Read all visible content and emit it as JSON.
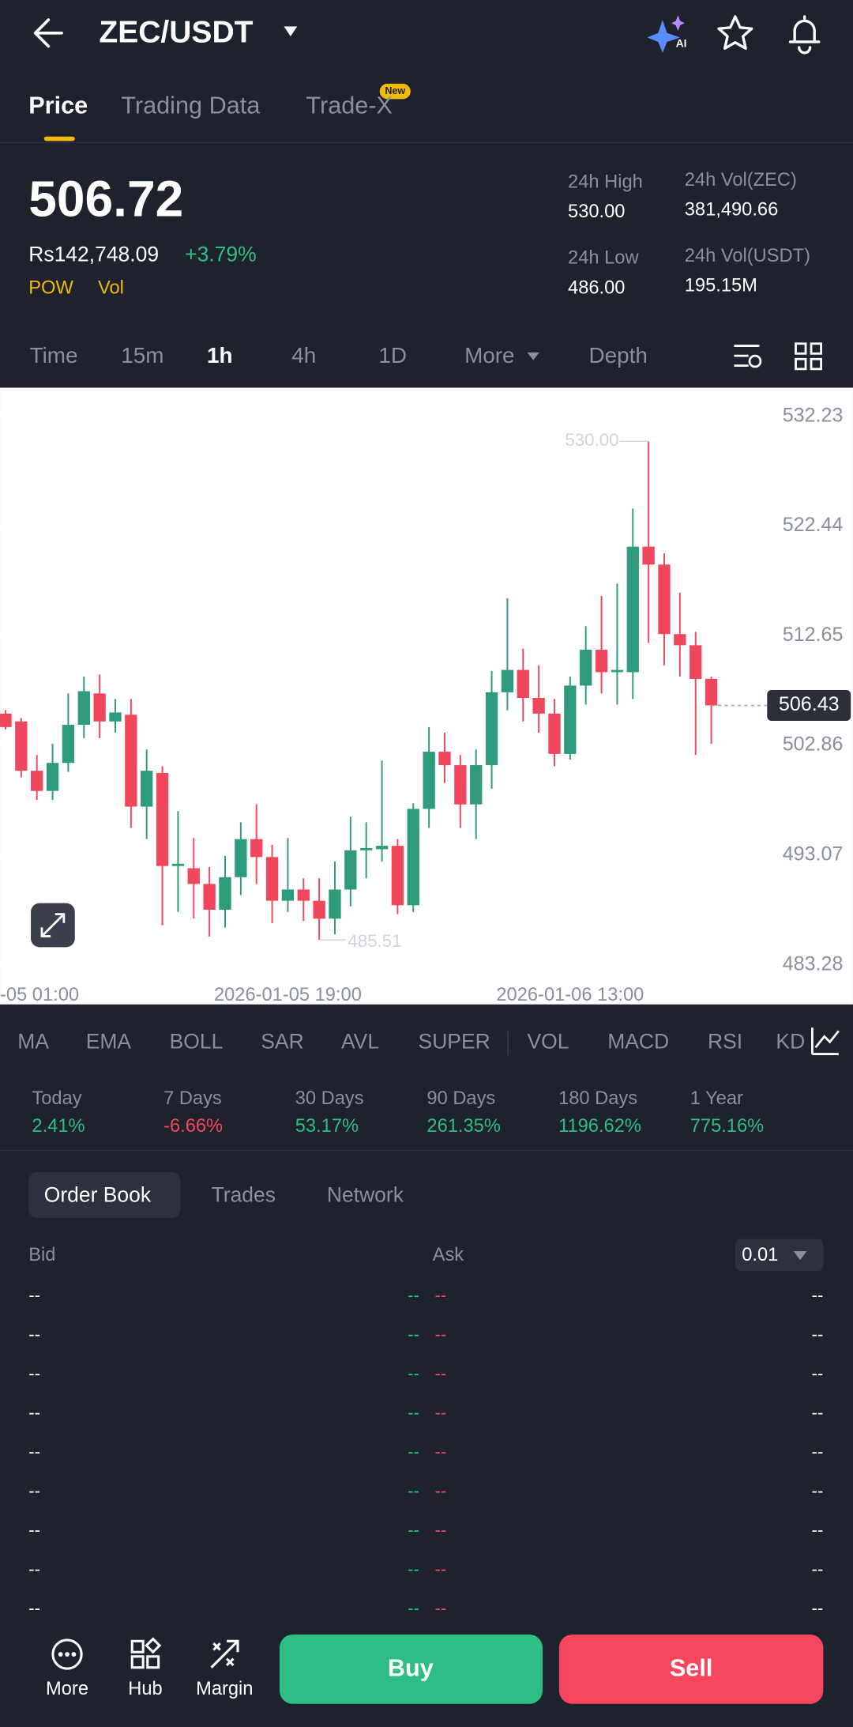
{
  "header": {
    "title": "ZEC/USDT",
    "tabs": [
      "Price",
      "Trading Data",
      "Trade-X"
    ],
    "badge": "New"
  },
  "price": {
    "last": "506.72",
    "fiat": "Rs142,748.09",
    "change": "+3.79%",
    "tags": [
      "POW",
      "Vol"
    ]
  },
  "stats": [
    {
      "label": "24h High",
      "value": "530.00"
    },
    {
      "label": "24h Vol(ZEC)",
      "value": "381,490.66"
    },
    {
      "label": "24h Low",
      "value": "486.00"
    },
    {
      "label": "24h Vol(USDT)",
      "value": "195.15M"
    }
  ],
  "intervals": [
    "Time",
    "15m",
    "1h",
    "4h",
    "1D",
    "More",
    "Depth"
  ],
  "chart_data": {
    "type": "candlestick",
    "categories": [
      "-05 01:00",
      null,
      null,
      null,
      null,
      null,
      null,
      null,
      null,
      null,
      null,
      null,
      null,
      null,
      null,
      null,
      null,
      null,
      "2026-01-05 19:00",
      null,
      null,
      null,
      null,
      null,
      null,
      null,
      null,
      null,
      null,
      null,
      null,
      null,
      null,
      null,
      null,
      null,
      "2026-01-06 13:00",
      null,
      null,
      null,
      null,
      null,
      null,
      null,
      null,
      null
    ],
    "open": [
      505.7,
      505.0,
      500.6,
      498.8,
      501.3,
      504.7,
      507.5,
      505.0,
      505.6,
      497.4,
      500.4,
      492.1,
      491.9,
      490.5,
      488.2,
      491.1,
      494.5,
      492.9,
      489.0,
      490.0,
      489.0,
      487.4,
      490.0,
      493.5,
      493.6,
      493.9,
      488.6,
      497.2,
      502.3,
      501.1,
      497.6,
      501.1,
      507.6,
      509.6,
      507.1,
      505.7,
      502.1,
      508.2,
      511.4,
      509.4,
      509.4,
      520.6,
      519.0,
      512.8,
      511.8,
      508.8
    ],
    "high": [
      506.0,
      505.3,
      502.0,
      503.0,
      507.5,
      509.0,
      509.2,
      507.0,
      507.0,
      502.5,
      501.0,
      497.0,
      494.6,
      492.0,
      493.0,
      496.0,
      497.6,
      494.0,
      494.6,
      491.0,
      491.0,
      492.5,
      496.5,
      496.0,
      501.5,
      494.5,
      497.7,
      504.5,
      504.0,
      502.0,
      502.5,
      509.5,
      516.0,
      511.5,
      510.0,
      507.0,
      509.0,
      513.5,
      516.2,
      517.3,
      524.0,
      530.0,
      520.0,
      516.5,
      513.0,
      509.0
    ],
    "low": [
      504.3,
      500.0,
      498.0,
      498.0,
      500.5,
      503.5,
      503.5,
      504.0,
      495.5,
      494.5,
      486.8,
      488.0,
      487.4,
      485.8,
      486.6,
      489.5,
      490.5,
      487.0,
      488.0,
      487.2,
      485.51,
      486.0,
      488.5,
      491.0,
      492.5,
      487.8,
      488.0,
      495.5,
      499.5,
      495.5,
      494.5,
      499.0,
      506.0,
      505.0,
      504.0,
      501.0,
      501.6,
      506.5,
      507.5,
      506.5,
      507.0,
      512.0,
      510.0,
      509.0,
      502.0,
      503.0
    ],
    "close": [
      504.5,
      500.6,
      498.8,
      501.3,
      504.7,
      507.7,
      505.0,
      505.8,
      497.4,
      500.6,
      492.1,
      492.3,
      490.5,
      488.2,
      491.1,
      494.5,
      492.9,
      489.0,
      490.0,
      489.0,
      487.4,
      490.0,
      493.5,
      493.7,
      493.9,
      488.6,
      497.2,
      502.3,
      501.1,
      497.6,
      501.1,
      507.6,
      509.6,
      507.1,
      505.7,
      502.1,
      508.2,
      511.4,
      509.4,
      509.6,
      520.6,
      519.0,
      512.8,
      511.8,
      508.8,
      506.43
    ],
    "up_color": "#2e9b7c",
    "down_color": "#f0475d",
    "ylim": [
      483.28,
      532.23
    ],
    "yticks": [
      532.23,
      522.44,
      512.65,
      502.86,
      493.07,
      483.28
    ],
    "max_marker": {
      "value": 530.0,
      "label": "530.00"
    },
    "min_marker": {
      "value": 485.51,
      "label": "485.51"
    },
    "last_price": {
      "value": 506.43,
      "label": "506.43"
    }
  },
  "indicators": [
    "MA",
    "EMA",
    "BOLL",
    "SAR",
    "AVL",
    "SUPER",
    "VOL",
    "MACD",
    "RSI",
    "KD"
  ],
  "performance": [
    {
      "label": "Today",
      "value": "2.41%"
    },
    {
      "label": "7 Days",
      "value": "-6.66%"
    },
    {
      "label": "30 Days",
      "value": "53.17%"
    },
    {
      "label": "90 Days",
      "value": "261.35%"
    },
    {
      "label": "180 Days",
      "value": "1196.62%"
    },
    {
      "label": "1 Year",
      "value": "775.16%"
    }
  ],
  "order_book": {
    "tabs": [
      "Order Book",
      "Trades",
      "Network"
    ],
    "bid_header": "Bid",
    "ask_header": "Ask",
    "precision": "0.01",
    "rows": [
      [
        "--",
        "--",
        "--",
        "--"
      ],
      [
        "--",
        "--",
        "--",
        "--"
      ],
      [
        "--",
        "--",
        "--",
        "--"
      ],
      [
        "--",
        "--",
        "--",
        "--"
      ],
      [
        "--",
        "--",
        "--",
        "--"
      ],
      [
        "--",
        "--",
        "--",
        "--"
      ],
      [
        "--",
        "--",
        "--",
        "--"
      ],
      [
        "--",
        "--",
        "--",
        "--"
      ],
      [
        "--",
        "--",
        "--",
        "--"
      ]
    ]
  },
  "nav": [
    "More",
    "Hub",
    "Margin"
  ],
  "actions": [
    "Buy",
    "Sell"
  ]
}
